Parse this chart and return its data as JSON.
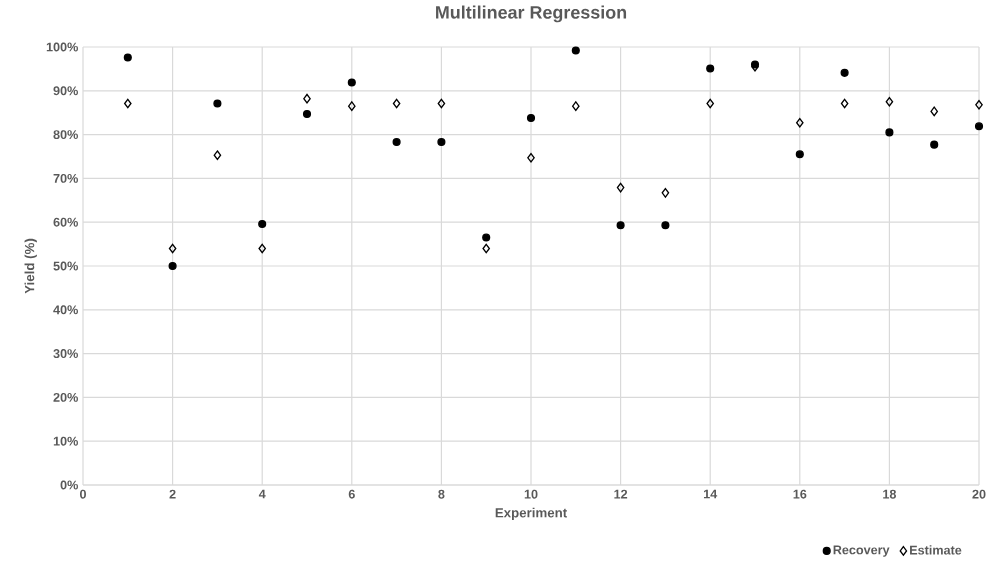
{
  "chart_data": {
    "type": "scatter",
    "title": "Multilinear Regression",
    "xlabel": "Experiment",
    "ylabel": "Yield (%)",
    "xlim": [
      0,
      20
    ],
    "xticks": [
      0,
      2,
      4,
      6,
      8,
      10,
      12,
      14,
      16,
      18,
      20
    ],
    "ylim": [
      0,
      100
    ],
    "yticks": [
      {
        "value": 0,
        "label": "0%"
      },
      {
        "value": 10,
        "label": "10%"
      },
      {
        "value": 20,
        "label": "20%"
      },
      {
        "value": 30,
        "label": "30%"
      },
      {
        "value": 40,
        "label": "40%"
      },
      {
        "value": 50,
        "label": "50%"
      },
      {
        "value": 60,
        "label": "60%"
      },
      {
        "value": 70,
        "label": "70%"
      },
      {
        "value": 80,
        "label": "80%"
      },
      {
        "value": 90,
        "label": "90%"
      },
      {
        "value": 100,
        "label": "100%"
      }
    ],
    "grid": true,
    "legend": "bottom",
    "x": [
      1,
      2,
      3,
      4,
      5,
      6,
      7,
      8,
      9,
      10,
      11,
      12,
      13,
      14,
      15,
      16,
      17,
      18,
      19,
      20
    ],
    "series": [
      {
        "name": "Recovery",
        "color": "#000000",
        "marker": "circle",
        "values": [
          97.6,
          50,
          87.1,
          59.6,
          84.7,
          91.9,
          78.3,
          78.3,
          56.5,
          83.8,
          99.2,
          59.3,
          59.3,
          95.1,
          96.0,
          75.5,
          94.1,
          80.5,
          77.7,
          81.9
        ]
      },
      {
        "name": "Estimate",
        "color": "#000000",
        "marker": "diamond",
        "values": [
          87.1,
          54.0,
          75.3,
          54.0,
          88.2,
          86.5,
          87.1,
          87.1,
          54.0,
          74.7,
          86.5,
          67.9,
          66.7,
          87.1,
          95.5,
          82.7,
          87.1,
          87.5,
          85.3,
          86.8
        ]
      }
    ]
  }
}
